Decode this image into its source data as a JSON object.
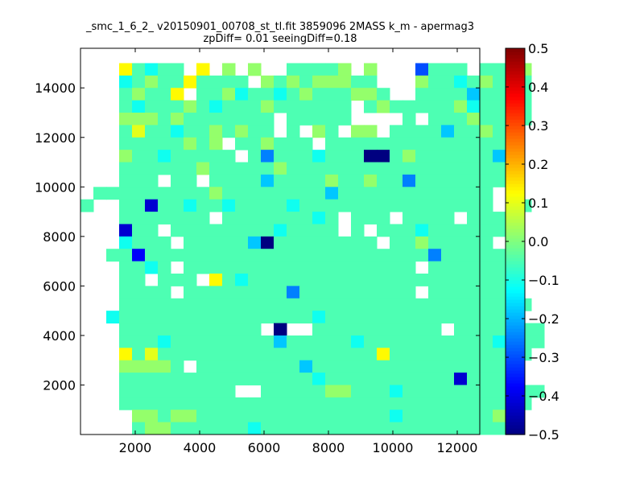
{
  "chart_data": {
    "type": "heatmap",
    "title": "_smc_1_6_2_ v20150901_00708_st_tl.fit 3859096 2MASS k_m - apermag3",
    "subtitle": "zpDiff= 0.01 seeingDiff=0.18",
    "xlabel": "",
    "ylabel": "",
    "xlim": [
      300,
      12700
    ],
    "ylim": [
      0,
      15600
    ],
    "xticks": [
      2000,
      4000,
      6000,
      8000,
      10000,
      12000
    ],
    "xtick_labels": [
      "2000",
      "4000",
      "6000",
      "8000",
      "10000",
      "12000"
    ],
    "yticks": [
      2000,
      4000,
      6000,
      8000,
      10000,
      12000,
      14000
    ],
    "ytick_labels": [
      "2000",
      "4000",
      "6000",
      "8000",
      "10000",
      "12000",
      "14000"
    ],
    "grid": false,
    "colormap": "jet",
    "colorbar": {
      "min": -0.5,
      "max": 0.5,
      "ticks": [
        -0.5,
        -0.4,
        -0.3,
        -0.2,
        -0.1,
        0.0,
        0.1,
        0.2,
        0.3,
        0.4,
        0.5
      ],
      "tick_labels": [
        "−0.5",
        "−0.4",
        "−0.3",
        "−0.2",
        "−0.1",
        "0.0",
        "0.1",
        "0.2",
        "0.3",
        "0.4",
        "0.5"
      ]
    },
    "grid_x0": 300,
    "grid_y0": 0,
    "cell_w": 400,
    "cell_h": 500,
    "rows_from_top": [
      "...wHGHH.w.I.IWAHHHHI.I...eHHH.HH.I..",
      "...GHIHHwHHHH.IHIHIIIHH...IHHGHIH.H..",
      "...HIHHw.HHIGHHGHIHHHIIH..HHHHFHHHH..",
      "...HGHHHIHGHHHIHHHHHH.HIHHHHHIGHHHH..",
      "...IIIHIHHHHHHH.HHHHH....H.HHHIHH.H..",
      "...HiHHGHHIHIHH.H.IH.II.HHHHFHHIHH...",
      "...HHHHHIHI.HHIHHH.HHHHHHHHHHHHHHH...",
      "...IHHGHHHHH.HEHHHGHHHaaHIHHHHHHFH...",
      "...HHHHHHIHHHHHIHHHHHHHHHHHHHHHHHH...",
      "...HHH.HH.HHHHFHHHHIHHIHHEHHHHHHHI...",
      ".HHHHHHHHHIHHHHHHHHFHHHHHHHHHHHH.....",
      "H..HHcHHGHHGHHHHGHHHHHHHHHHHHHHH..H..",
      "...HHHHHHH.HHHHHHHGH.HHH.HHHH.HHH....",
      "...cHH.HHHHHHHHGHHHH.H.HHHGHHHHHH....",
      "...GHHH.HHHHHFaHHHHHHHH.HHIHHHHH.....",
      "..HHdHHHHHHHHHHHHHHHHHHHHHHEHHHHH....",
      "...HHGH.HHHHHHHHHHHHHHHHHH.HHHHHH....",
      "...HH.HHH.wHGHHHHHHHHHHHHHHHHHHHHH...",
      "...HHHH.HHHHHHHHEHHHHHHHHH.HHHHHHH...",
      "...HHHHHHHHHHHHHHHHHHHHHHHHHHHHHHHH..",
      "..GHHHHHHHHHHHHHHHGHHHHHHHHHHHHHHH...",
      "...HHHHHHHHHHH.a..HHHHHHHHHH.HHHHHHH.",
      "...HHHGHHHHHHHHFHHHHHGHHHHHHHHHHGHHH.",
      "...wHiHHHHHHHHHHHHHHHHHwHHHHHHHHHHH..",
      "...IIIIH.HHHHHHHHFHHHHHHHHHHHHHHHH...",
      "...HHHHHHHHHHHHHHHGHHHHHHHHHHcHHHH...",
      "...HHHHHHHHH..HHHHHIIHHHGHHHHHHHHHHH.",
      "...HHHHHHHHHHHHHHHHHHHHHHHHHHHHHHHH..",
      "....IIHIIHHHHHHHHHHHHHHHGHHHHHHHIH...",
      "....HIIHHHHHHGHHHHHHHHHHHHHHHHHHHH..."
    ],
    "value_codes": {
      "a": -0.5,
      "b": -0.45,
      "c": -0.42,
      "d": -0.38,
      "e": -0.3,
      "E": -0.25,
      "F": -0.18,
      "G": -0.11,
      "H": -0.05,
      "I": 0.02,
      "i": 0.1,
      "w": 0.13
    }
  }
}
